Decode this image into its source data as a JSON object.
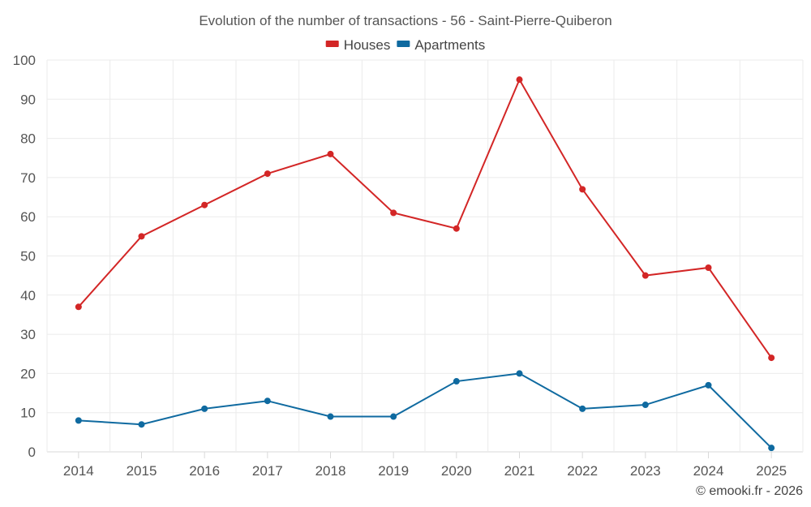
{
  "chart_data": {
    "type": "line",
    "title": "Evolution of the number of transactions - 56 - Saint-Pierre-Quiberon",
    "categories": [
      "2014",
      "2015",
      "2016",
      "2017",
      "2018",
      "2019",
      "2020",
      "2021",
      "2022",
      "2023",
      "2024",
      "2025"
    ],
    "series": [
      {
        "name": "Houses",
        "color": "#d32626",
        "values": [
          37,
          55,
          63,
          71,
          76,
          61,
          57,
          95,
          67,
          45,
          47,
          24
        ]
      },
      {
        "name": "Apartments",
        "color": "#0f6aa0",
        "values": [
          8,
          7,
          11,
          13,
          9,
          9,
          18,
          20,
          11,
          12,
          17,
          1
        ]
      }
    ],
    "ylim": [
      0,
      100
    ],
    "yticks": [
      0,
      10,
      20,
      30,
      40,
      50,
      60,
      70,
      80,
      90,
      100
    ],
    "xlabel": "",
    "ylabel": "",
    "grid": true,
    "legend": "top-center"
  },
  "credit": "© emooki.fr - 2026"
}
